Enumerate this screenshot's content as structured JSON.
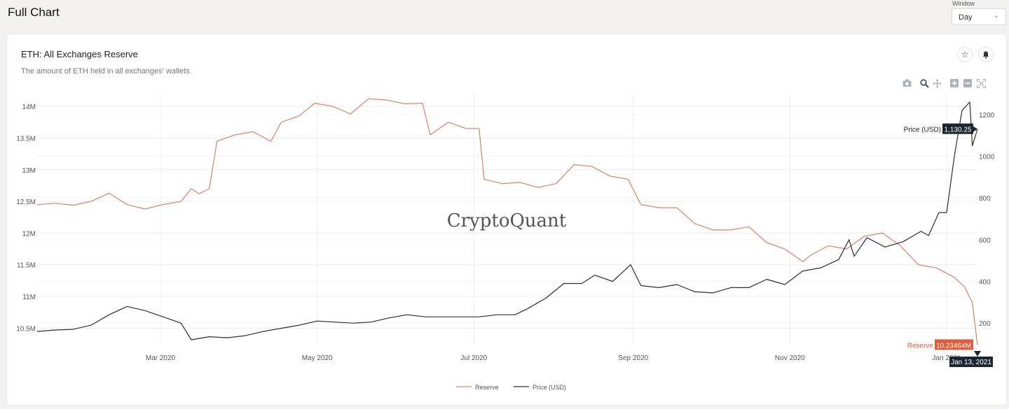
{
  "page": {
    "title": "Full Chart"
  },
  "window": {
    "label": "Window",
    "value": "Day"
  },
  "card": {
    "title": "ETH: All Exchanges Reserve",
    "subtitle": "The amount of ETH held in all exchanges' wallets."
  },
  "icons": [
    "star-icon",
    "bell-icon",
    "camera-icon",
    "zoom-icon",
    "pan-icon",
    "zoom-in-icon",
    "zoom-out-icon",
    "autoscale-icon"
  ],
  "colors": {
    "reserve": "#d9826b",
    "price": "#2b2f33",
    "reserve_badge": "#e05a3c",
    "price_badge": "#1c2530"
  },
  "watermark": "CryptoQuant",
  "chart_data": {
    "type": "line",
    "grid": true,
    "legend_placement": "bottom-center",
    "x_ticks": [
      "Mar 2020",
      "May 2020",
      "Jul 2020",
      "Sep 2020",
      "Nov 2020",
      "Jan 2021"
    ],
    "x_range": [
      "2020-01-13",
      "2021-01-13"
    ],
    "y_left": {
      "ticks": [
        "10.5M",
        "11M",
        "11.5M",
        "12M",
        "12.5M",
        "13M",
        "13.5M",
        "14M"
      ],
      "range": [
        10.25,
        14.2
      ],
      "unit": "M"
    },
    "y_right": {
      "ticks": [
        "200",
        "400",
        "600",
        "800",
        "1000",
        "1200"
      ],
      "range": [
        100,
        1300
      ]
    },
    "series": [
      {
        "name": "Reserve",
        "axis": "left",
        "points": [
          [
            "2020-01-13",
            12.45
          ],
          [
            "2020-01-20",
            12.47
          ],
          [
            "2020-01-27",
            12.44
          ],
          [
            "2020-02-03",
            12.5
          ],
          [
            "2020-02-10",
            12.63
          ],
          [
            "2020-02-17",
            12.45
          ],
          [
            "2020-02-24",
            12.38
          ],
          [
            "2020-03-02",
            12.45
          ],
          [
            "2020-03-09",
            12.5
          ],
          [
            "2020-03-13",
            12.7
          ],
          [
            "2020-03-16",
            12.62
          ],
          [
            "2020-03-20",
            12.7
          ],
          [
            "2020-03-23",
            13.45
          ],
          [
            "2020-03-30",
            13.55
          ],
          [
            "2020-04-06",
            13.6
          ],
          [
            "2020-04-13",
            13.45
          ],
          [
            "2020-04-17",
            13.75
          ],
          [
            "2020-04-24",
            13.85
          ],
          [
            "2020-04-30",
            14.05
          ],
          [
            "2020-05-07",
            14.0
          ],
          [
            "2020-05-14",
            13.88
          ],
          [
            "2020-05-21",
            14.12
          ],
          [
            "2020-05-28",
            14.1
          ],
          [
            "2020-06-04",
            14.04
          ],
          [
            "2020-06-11",
            14.05
          ],
          [
            "2020-06-14",
            13.55
          ],
          [
            "2020-06-21",
            13.75
          ],
          [
            "2020-06-28",
            13.65
          ],
          [
            "2020-07-03",
            13.65
          ],
          [
            "2020-07-05",
            12.85
          ],
          [
            "2020-07-12",
            12.78
          ],
          [
            "2020-07-19",
            12.8
          ],
          [
            "2020-07-26",
            12.72
          ],
          [
            "2020-08-02",
            12.78
          ],
          [
            "2020-08-09",
            13.08
          ],
          [
            "2020-08-16",
            13.05
          ],
          [
            "2020-08-23",
            12.9
          ],
          [
            "2020-08-30",
            12.85
          ],
          [
            "2020-09-04",
            12.45
          ],
          [
            "2020-09-11",
            12.4
          ],
          [
            "2020-09-18",
            12.4
          ],
          [
            "2020-09-25",
            12.15
          ],
          [
            "2020-10-02",
            12.05
          ],
          [
            "2020-10-09",
            12.05
          ],
          [
            "2020-10-16",
            12.1
          ],
          [
            "2020-10-23",
            11.85
          ],
          [
            "2020-10-30",
            11.75
          ],
          [
            "2020-11-06",
            11.55
          ],
          [
            "2020-11-09",
            11.65
          ],
          [
            "2020-11-16",
            11.8
          ],
          [
            "2020-11-23",
            11.75
          ],
          [
            "2020-11-30",
            11.95
          ],
          [
            "2020-12-07",
            12.0
          ],
          [
            "2020-12-14",
            11.8
          ],
          [
            "2020-12-21",
            11.5
          ],
          [
            "2020-12-28",
            11.45
          ],
          [
            "2021-01-04",
            11.3
          ],
          [
            "2021-01-08",
            11.15
          ],
          [
            "2021-01-11",
            10.9
          ],
          [
            "2021-01-13",
            10.23464
          ]
        ]
      },
      {
        "name": "Price (USD)",
        "axis": "right",
        "points": [
          [
            "2020-01-13",
            160
          ],
          [
            "2020-01-20",
            167
          ],
          [
            "2020-01-27",
            170
          ],
          [
            "2020-02-03",
            190
          ],
          [
            "2020-02-10",
            240
          ],
          [
            "2020-02-17",
            280
          ],
          [
            "2020-02-24",
            260
          ],
          [
            "2020-03-02",
            230
          ],
          [
            "2020-03-09",
            200
          ],
          [
            "2020-03-13",
            120
          ],
          [
            "2020-03-20",
            135
          ],
          [
            "2020-03-27",
            130
          ],
          [
            "2020-04-03",
            140
          ],
          [
            "2020-04-10",
            160
          ],
          [
            "2020-04-17",
            175
          ],
          [
            "2020-04-24",
            190
          ],
          [
            "2020-05-01",
            210
          ],
          [
            "2020-05-08",
            205
          ],
          [
            "2020-05-15",
            200
          ],
          [
            "2020-05-22",
            205
          ],
          [
            "2020-05-29",
            225
          ],
          [
            "2020-06-05",
            240
          ],
          [
            "2020-06-12",
            230
          ],
          [
            "2020-06-19",
            230
          ],
          [
            "2020-06-26",
            230
          ],
          [
            "2020-07-03",
            230
          ],
          [
            "2020-07-10",
            240
          ],
          [
            "2020-07-17",
            240
          ],
          [
            "2020-07-22",
            270
          ],
          [
            "2020-07-29",
            320
          ],
          [
            "2020-08-05",
            390
          ],
          [
            "2020-08-12",
            390
          ],
          [
            "2020-08-17",
            430
          ],
          [
            "2020-08-24",
            400
          ],
          [
            "2020-08-31",
            480
          ],
          [
            "2020-09-04",
            380
          ],
          [
            "2020-09-11",
            370
          ],
          [
            "2020-09-18",
            385
          ],
          [
            "2020-09-25",
            350
          ],
          [
            "2020-10-02",
            345
          ],
          [
            "2020-10-09",
            370
          ],
          [
            "2020-10-16",
            370
          ],
          [
            "2020-10-23",
            410
          ],
          [
            "2020-10-30",
            385
          ],
          [
            "2020-11-06",
            450
          ],
          [
            "2020-11-13",
            465
          ],
          [
            "2020-11-20",
            505
          ],
          [
            "2020-11-24",
            600
          ],
          [
            "2020-11-26",
            520
          ],
          [
            "2020-12-01",
            610
          ],
          [
            "2020-12-08",
            565
          ],
          [
            "2020-12-15",
            590
          ],
          [
            "2020-12-22",
            640
          ],
          [
            "2020-12-25",
            620
          ],
          [
            "2020-12-29",
            730
          ],
          [
            "2021-01-01",
            730
          ],
          [
            "2021-01-04",
            1000
          ],
          [
            "2021-01-07",
            1220
          ],
          [
            "2021-01-10",
            1260
          ],
          [
            "2021-01-11",
            1050
          ],
          [
            "2021-01-13",
            1130.25
          ]
        ]
      }
    ],
    "callouts": {
      "price": "1,130.25",
      "price_label": "Price (USD)",
      "reserve": "10.23464M",
      "reserve_label": "Reserve",
      "date": "Jan 13, 2021"
    }
  }
}
